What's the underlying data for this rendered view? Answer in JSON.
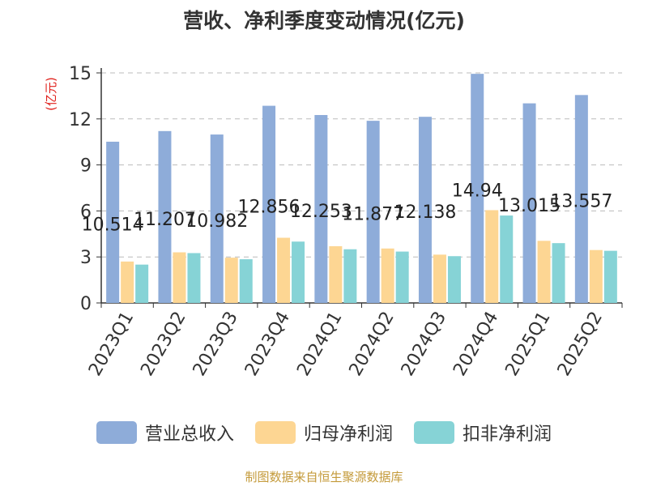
{
  "chart_data": {
    "type": "bar",
    "title": "营收、净利季度变动情况(亿元)",
    "ylabel": "(亿元)",
    "categories": [
      "2023Q1",
      "2023Q2",
      "2023Q3",
      "2023Q4",
      "2024Q1",
      "2024Q2",
      "2024Q3",
      "2024Q4",
      "2025Q1",
      "2025Q2"
    ],
    "series": [
      {
        "name": "营业总收入",
        "color": "#8eacd9",
        "values": [
          10.514,
          11.207,
          10.982,
          12.856,
          12.253,
          11.877,
          12.138,
          14.94,
          13.015,
          13.557
        ],
        "labels": [
          "10.514",
          "11.207",
          "10.982",
          "12.856",
          "12.253",
          "11.877",
          "12.138",
          "14.94",
          "13.015",
          "13.557"
        ]
      },
      {
        "name": "归母净利润",
        "color": "#fdd693",
        "values": [
          2.7,
          3.3,
          2.95,
          4.25,
          3.7,
          3.55,
          3.15,
          6.05,
          4.05,
          3.45
        ]
      },
      {
        "name": "扣非净利润",
        "color": "#86d3d6",
        "values": [
          2.5,
          3.25,
          2.85,
          4.0,
          3.5,
          3.35,
          3.05,
          5.7,
          3.9,
          3.4
        ]
      }
    ],
    "ylim": [
      0,
      15
    ],
    "yticks": [
      "0",
      "3",
      "6",
      "9",
      "12",
      "15"
    ],
    "grid": true,
    "legend_position": "bottom"
  },
  "source_note": "制图数据来自恒生聚源数据库"
}
